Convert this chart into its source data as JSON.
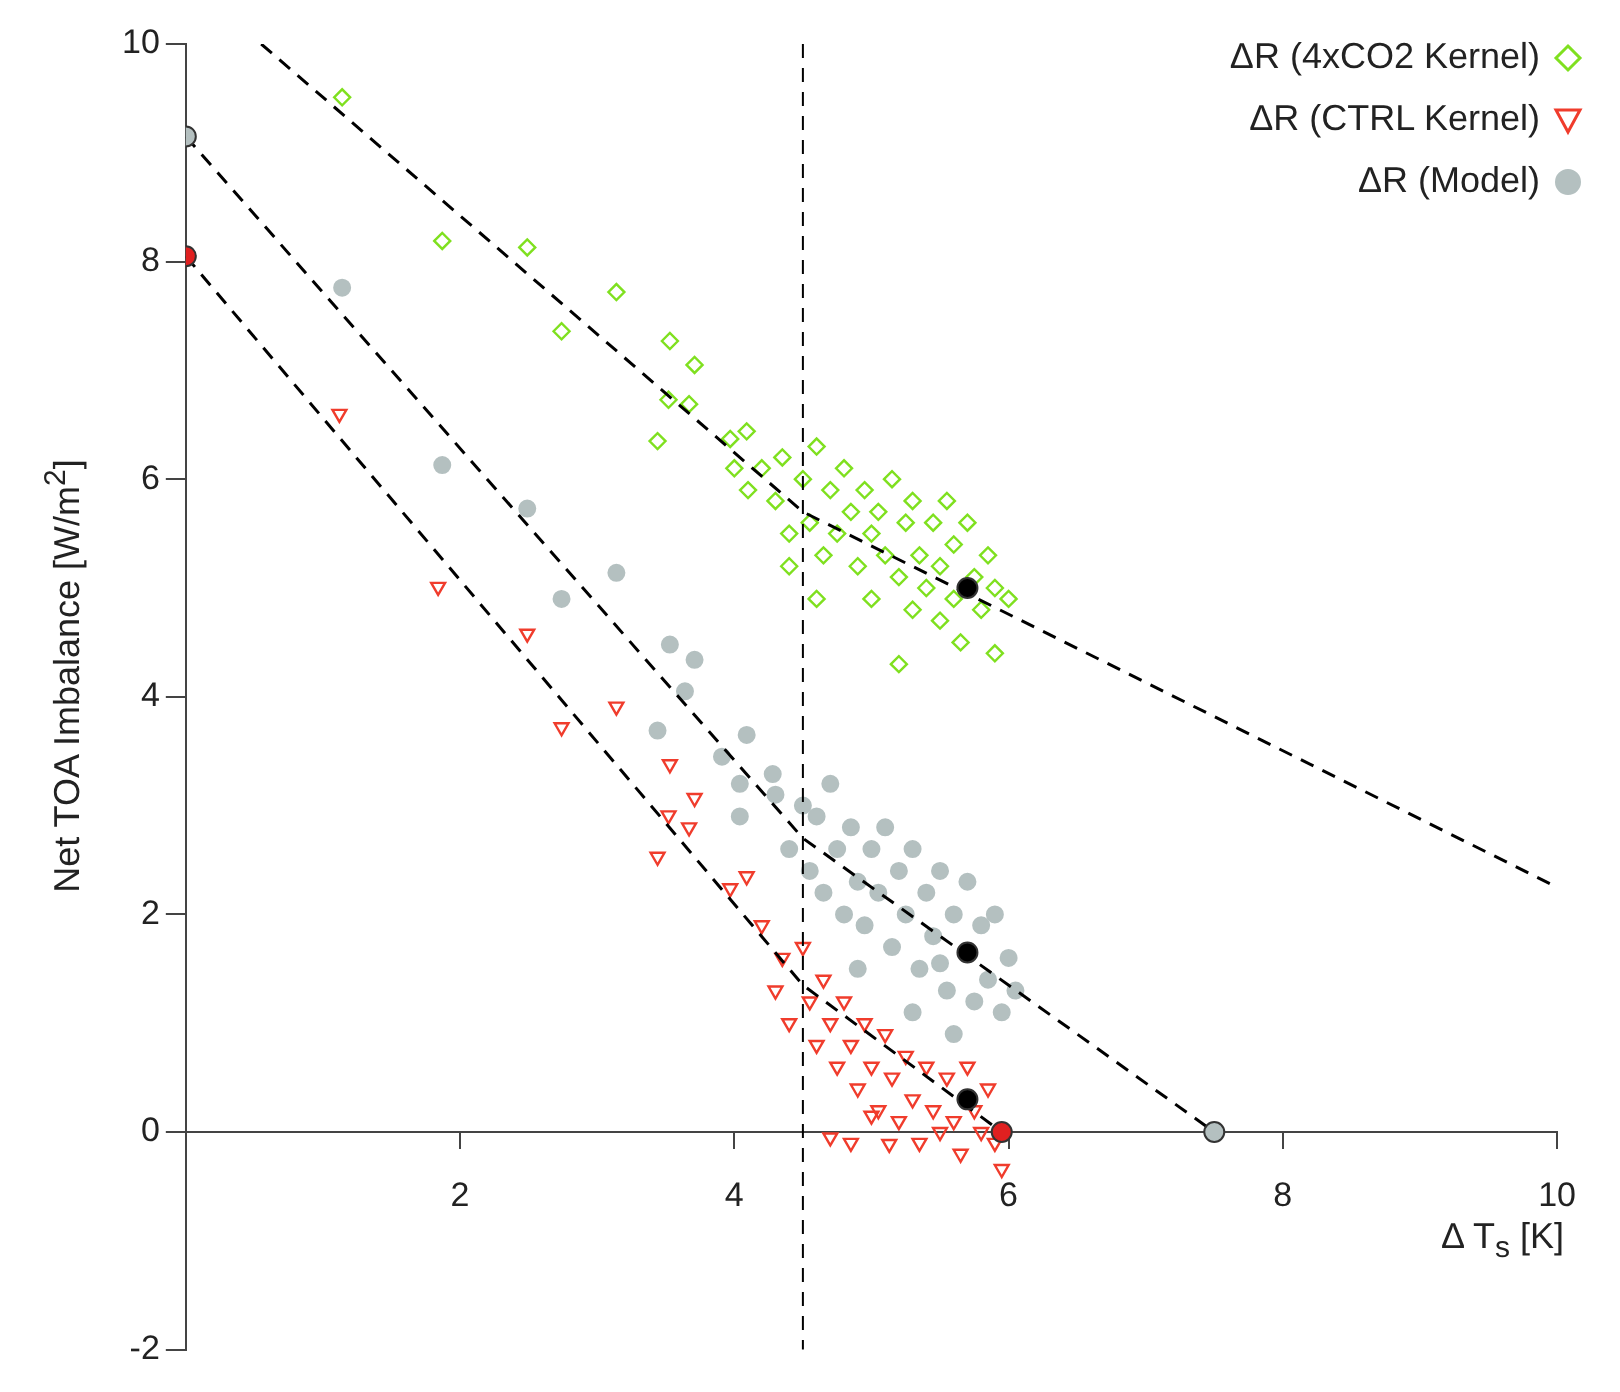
{
  "chart_data": {
    "type": "scatter",
    "xlabel": "Δ T$_{s}$ [K]",
    "ylabel": "Net TOA Imbalance [W/m$^{2}$]",
    "xlim": [
      0,
      10
    ],
    "xticks": [
      2,
      4,
      6,
      8,
      10
    ],
    "ylim": [
      -2,
      10
    ],
    "yticks": [
      -2,
      0,
      2,
      4,
      6,
      8,
      10
    ],
    "grid": false,
    "legend": "top right",
    "ref_lines": [
      {
        "axis": "x",
        "value": 4.5,
        "color": "#000000",
        "line_style": "dashed"
      }
    ],
    "series": [
      {
        "name": "ΔR (4xCO2 Kernel)",
        "marker": "diamond",
        "color": "#7fe01f",
        "x": [
          1.14,
          1.87,
          2.49,
          3.14,
          2.74,
          3.53,
          3.71,
          3.52,
          3.67,
          3.44,
          4.09,
          3.97,
          4.0,
          4.1,
          4.2,
          4.3,
          4.35,
          4.4,
          4.5,
          4.55,
          4.6,
          4.65,
          4.7,
          4.75,
          4.8,
          4.85,
          4.9,
          4.95,
          5.0,
          5.0,
          5.05,
          5.1,
          5.15,
          5.2,
          5.25,
          5.3,
          5.3,
          5.35,
          5.4,
          5.45,
          5.5,
          5.5,
          5.55,
          5.6,
          5.6,
          5.65,
          5.7,
          5.75,
          5.8,
          5.85,
          5.9,
          6.0,
          5.2,
          4.4,
          4.6,
          5.9
        ],
        "values": [
          9.51,
          8.19,
          8.13,
          7.72,
          7.36,
          7.27,
          7.05,
          6.73,
          6.69,
          6.35,
          6.44,
          6.37,
          6.1,
          5.9,
          6.1,
          5.8,
          6.2,
          5.5,
          6.0,
          5.6,
          6.3,
          5.3,
          5.9,
          5.5,
          6.1,
          5.7,
          5.2,
          5.9,
          5.5,
          4.9,
          5.7,
          5.3,
          6.0,
          5.1,
          5.6,
          4.8,
          5.8,
          5.3,
          5.0,
          5.6,
          4.7,
          5.2,
          5.8,
          4.9,
          5.4,
          4.5,
          5.6,
          5.1,
          4.8,
          5.3,
          5.0,
          4.9,
          4.3,
          5.2,
          4.9,
          4.4
        ]
      },
      {
        "name": "ΔR (CTRL Kernel)",
        "marker": "triangle",
        "color": "#f03c2c",
        "x": [
          1.12,
          1.84,
          2.49,
          3.14,
          2.74,
          3.53,
          3.71,
          3.52,
          3.67,
          3.44,
          4.09,
          3.97,
          4.2,
          4.3,
          4.35,
          4.4,
          4.5,
          4.55,
          4.6,
          4.65,
          4.7,
          4.75,
          4.8,
          4.85,
          4.9,
          4.95,
          5.0,
          5.05,
          5.1,
          5.15,
          5.2,
          5.25,
          5.3,
          5.35,
          5.4,
          5.45,
          5.5,
          5.55,
          5.6,
          5.65,
          5.7,
          5.75,
          5.8,
          5.85,
          5.9,
          5.95,
          5.13,
          4.85,
          4.7,
          5.0
        ],
        "values": [
          6.6,
          5.01,
          4.58,
          3.91,
          3.72,
          3.38,
          3.07,
          2.91,
          2.8,
          2.53,
          2.35,
          2.24,
          1.9,
          1.3,
          1.6,
          1.0,
          1.7,
          1.2,
          0.8,
          1.4,
          1.0,
          0.6,
          1.2,
          0.8,
          0.4,
          1.0,
          0.6,
          0.2,
          0.9,
          0.5,
          0.1,
          0.7,
          0.3,
          -0.1,
          0.6,
          0.2,
          0.0,
          0.5,
          0.1,
          -0.2,
          0.6,
          0.2,
          0.0,
          0.4,
          -0.1,
          -0.34,
          -0.11,
          -0.1,
          -0.05,
          0.15
        ]
      },
      {
        "name": "ΔR (Model)",
        "marker": "circle",
        "color": "#b4c0c0",
        "x": [
          1.14,
          1.87,
          2.49,
          3.14,
          2.74,
          3.53,
          3.71,
          3.44,
          3.64,
          4.09,
          3.91,
          4.04,
          4.28,
          4.04,
          4.3,
          4.4,
          4.5,
          4.55,
          4.6,
          4.65,
          4.7,
          4.75,
          4.8,
          4.85,
          4.9,
          4.95,
          5.0,
          5.05,
          5.1,
          5.15,
          5.2,
          5.25,
          5.3,
          5.35,
          5.4,
          5.45,
          5.5,
          5.55,
          5.6,
          5.5,
          5.7,
          5.75,
          5.8,
          5.85,
          5.9,
          5.95,
          6.0,
          6.05,
          5.3,
          5.6,
          4.9
        ],
        "values": [
          7.76,
          6.13,
          5.73,
          5.14,
          4.9,
          4.48,
          4.34,
          3.69,
          4.05,
          3.65,
          3.45,
          3.2,
          3.29,
          2.9,
          3.1,
          2.6,
          3.0,
          2.4,
          2.9,
          2.2,
          3.2,
          2.6,
          2.0,
          2.8,
          2.3,
          1.9,
          2.6,
          2.2,
          2.8,
          1.7,
          2.4,
          2.0,
          2.6,
          1.5,
          2.2,
          1.8,
          2.4,
          1.3,
          2.0,
          1.55,
          2.3,
          1.2,
          1.9,
          1.4,
          2.0,
          1.1,
          1.6,
          1.3,
          1.1,
          0.9,
          1.5
        ]
      },
      {
        "type": "line",
        "marker": "none",
        "line_style": "dashed",
        "color": "#000000",
        "x": [
          0.55,
          4.5,
          10
        ],
        "values": [
          10.0,
          5.7,
          2.25
        ]
      },
      {
        "type": "line",
        "marker": "none",
        "line_style": "dashed",
        "color": "#000000",
        "x": [
          0,
          4.5,
          7.5
        ],
        "values": [
          9.15,
          2.7,
          0
        ]
      },
      {
        "type": "line",
        "marker": "none",
        "line_style": "dashed",
        "color": "#000000",
        "x": [
          0,
          4.5,
          5.95
        ],
        "values": [
          8.05,
          1.35,
          0
        ]
      },
      {
        "type": "scatter",
        "marker": "circle",
        "color": "#b4c0c0",
        "x": [
          0,
          7.5
        ],
        "values": [
          9.15,
          0
        ]
      },
      {
        "type": "scatter",
        "marker": "circle",
        "color": "#e02020",
        "x": [
          0,
          5.95
        ],
        "values": [
          8.05,
          0
        ]
      },
      {
        "type": "scatter",
        "marker": "circle",
        "color": "#000000",
        "x": [
          5.7,
          5.7,
          5.7
        ],
        "values": [
          5.0,
          1.65,
          0.3
        ]
      }
    ]
  }
}
